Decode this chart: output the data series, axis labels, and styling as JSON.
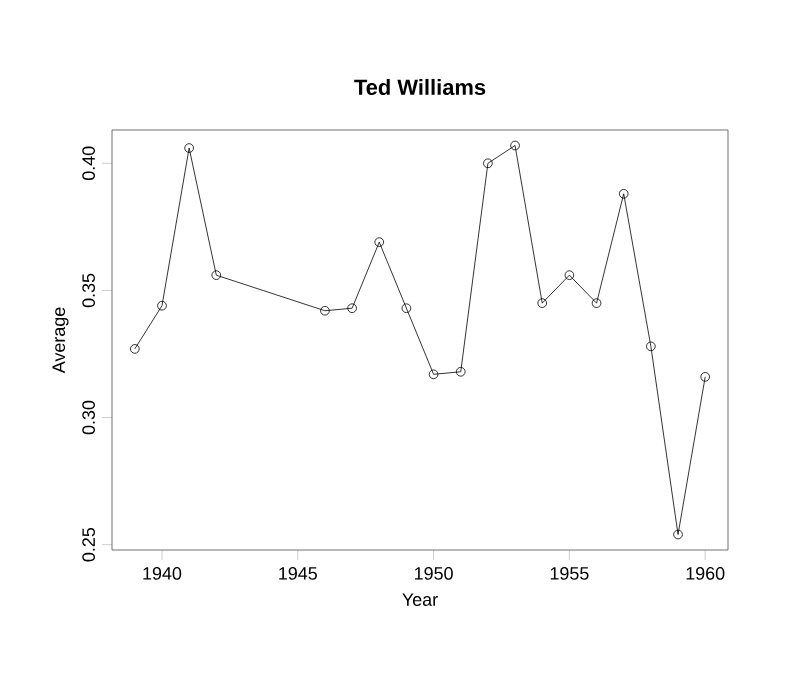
{
  "chart_data": {
    "type": "line",
    "title": "Ted Williams",
    "xlabel": "Year",
    "ylabel": "Average",
    "x": [
      1939,
      1940,
      1941,
      1942,
      1946,
      1947,
      1948,
      1949,
      1950,
      1951,
      1952,
      1953,
      1954,
      1955,
      1956,
      1957,
      1958,
      1959,
      1960
    ],
    "values": [
      0.327,
      0.344,
      0.406,
      0.356,
      0.342,
      0.343,
      0.369,
      0.343,
      0.317,
      0.318,
      0.4,
      0.407,
      0.345,
      0.356,
      0.345,
      0.388,
      0.328,
      0.254,
      0.316
    ],
    "color": "#000000",
    "marker": "circle",
    "line_style": "solid",
    "xlim": [
      1938.16,
      1960.84
    ],
    "ylim": [
      0.2479,
      0.4131
    ],
    "xticks": [
      1940,
      1945,
      1950,
      1955,
      1960
    ],
    "yticks": [
      {
        "value": 0.25,
        "label": "0.25"
      },
      {
        "value": 0.3,
        "label": "0.30"
      },
      {
        "value": 0.35,
        "label": "0.35"
      },
      {
        "value": 0.4,
        "label": "0.40"
      }
    ]
  }
}
